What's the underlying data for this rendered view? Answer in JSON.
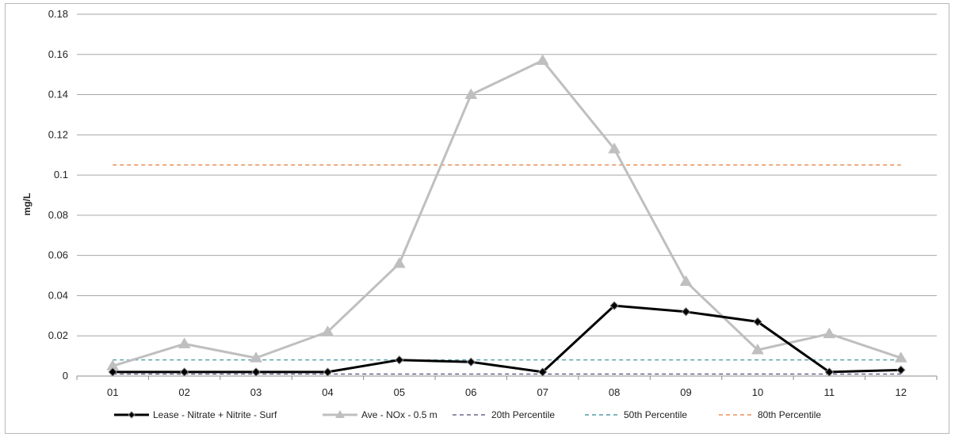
{
  "chart_data": {
    "type": "line",
    "title": "",
    "xlabel": "",
    "ylabel": "mg/L",
    "ylim": [
      0,
      0.18
    ],
    "yticks": [
      0,
      0.02,
      0.04,
      0.06,
      0.08,
      0.1,
      0.12,
      0.14,
      0.16,
      0.18
    ],
    "ytick_labels": [
      "0",
      "0.02",
      "0.04",
      "0.06",
      "0.08",
      "0.1",
      "0.12",
      "0.14",
      "0.16",
      "0.18"
    ],
    "categories": [
      "01",
      "02",
      "03",
      "04",
      "05",
      "06",
      "07",
      "08",
      "09",
      "10",
      "11",
      "12"
    ],
    "grid": "horizontal",
    "legend_position": "bottom",
    "series": [
      {
        "name": "Lease - Nitrate + Nitrite - Surf",
        "color": "#000000",
        "style": "solid",
        "marker": "diamond",
        "values": [
          0.002,
          0.002,
          0.002,
          0.002,
          0.008,
          0.007,
          0.002,
          0.035,
          0.032,
          0.027,
          0.002,
          0.003
        ]
      },
      {
        "name": "Ave - NOx - 0.5 m",
        "color": "#bfbfbf",
        "style": "solid",
        "marker": "triangle",
        "values": [
          0.005,
          0.016,
          0.009,
          0.022,
          0.056,
          0.14,
          0.157,
          0.113,
          0.047,
          0.013,
          0.021,
          0.009
        ]
      },
      {
        "name": "20th Percentile",
        "color": "#4a4a7a",
        "style": "dashed",
        "marker": "none",
        "values": [
          0.001,
          0.001,
          0.001,
          0.001,
          0.001,
          0.001,
          0.001,
          0.001,
          0.001,
          0.001,
          0.001,
          0.001
        ]
      },
      {
        "name": "50th Percentile",
        "color": "#2e8a98",
        "style": "dashed",
        "marker": "none",
        "values": [
          0.008,
          0.008,
          0.008,
          0.008,
          0.008,
          0.008,
          0.008,
          0.008,
          0.008,
          0.008,
          0.008,
          0.008
        ]
      },
      {
        "name": "80th Percentile",
        "color": "#e07b39",
        "style": "dashed",
        "marker": "none",
        "values": [
          0.105,
          0.105,
          0.105,
          0.105,
          0.105,
          0.105,
          0.105,
          0.105,
          0.105,
          0.105,
          0.105,
          0.105
        ]
      }
    ]
  }
}
